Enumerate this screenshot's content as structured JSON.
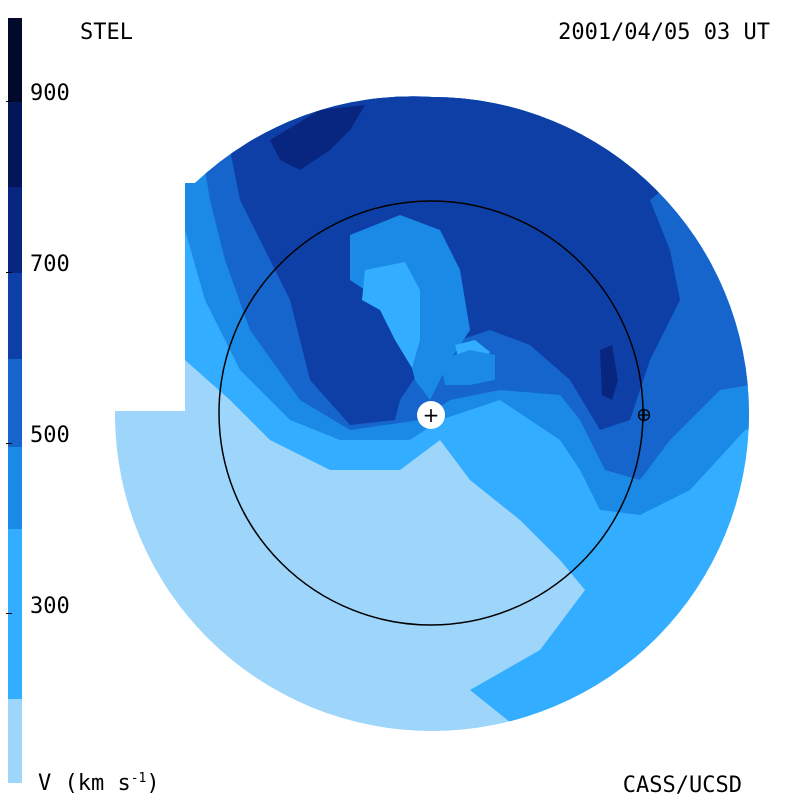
{
  "header": {
    "source": "STEL",
    "datetime": "2001/04/05 03 UT"
  },
  "footer": {
    "unit_prefix": "V (km s",
    "unit_exponent": "-1",
    "unit_suffix": ")",
    "credit": "CASS/UCSD"
  },
  "colorbar": {
    "ticks": [
      "900",
      "700",
      "500",
      "300"
    ],
    "colors": [
      "#9dd5fb",
      "#33adff",
      "#1a8ae6",
      "#1565cc",
      "#0d3fa6",
      "#082680",
      "#051559",
      "#020a2b"
    ]
  },
  "map": {
    "center_symbol": "+",
    "earth_symbol": "⊕",
    "colors": {
      "v200": "#9dd5fb",
      "v300": "#33adff",
      "v400": "#1a8ae6",
      "v500": "#1565cc",
      "v600": "#0d3fa6",
      "v700": "#082680"
    }
  }
}
